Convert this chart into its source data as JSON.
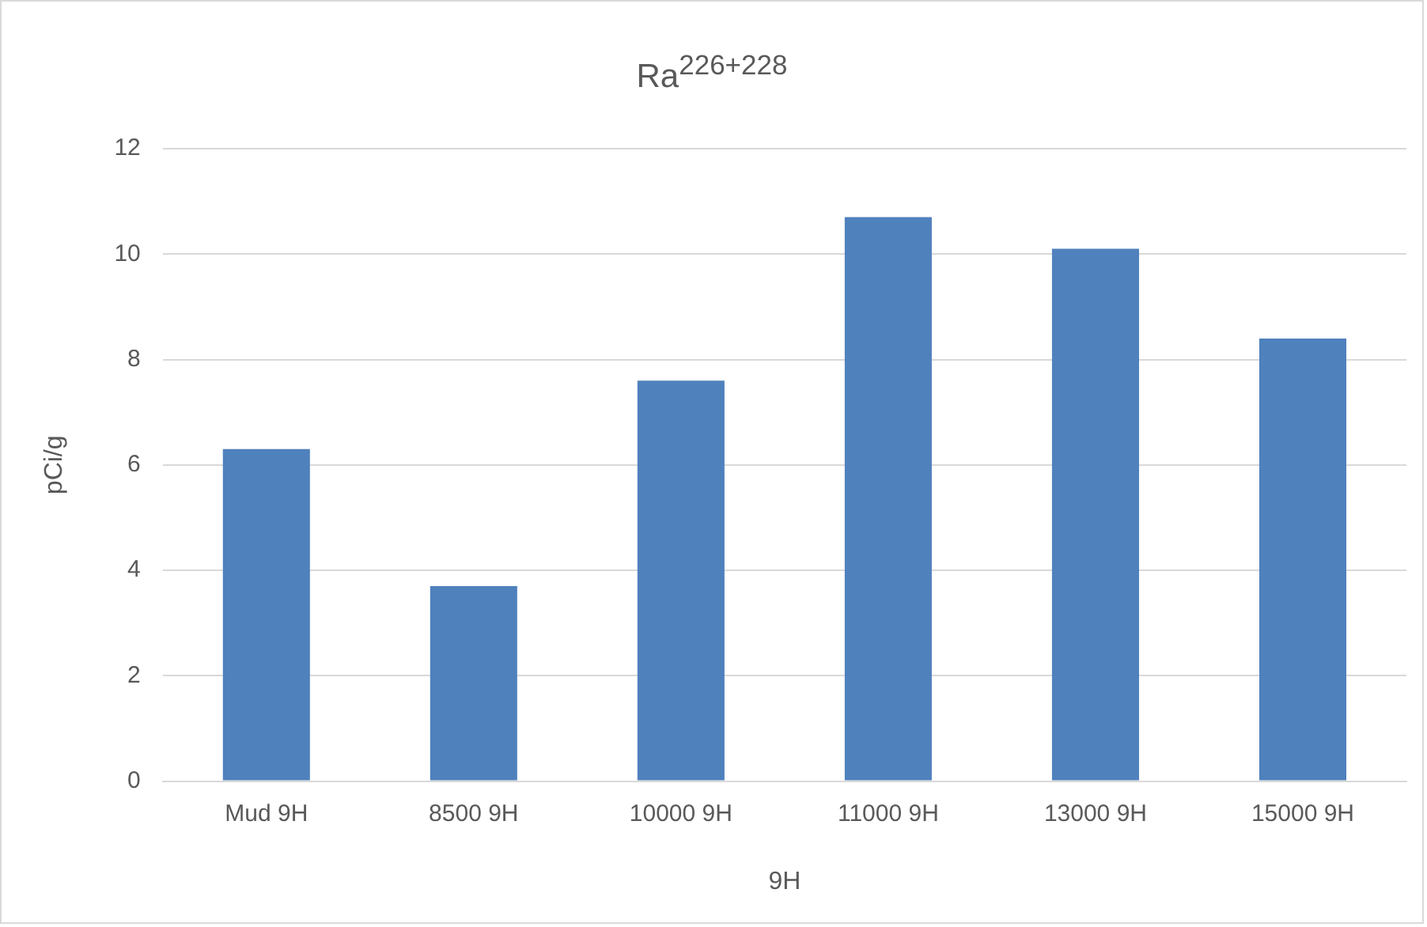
{
  "chart_data": {
    "type": "bar",
    "title": "Ra$^{226+228}$",
    "xlabel": "9H",
    "ylabel": "pCi/g",
    "categories": [
      "Mud 9H",
      "8500 9H",
      "10000 9H",
      "11000 9H",
      "13000 9H",
      "15000 9H"
    ],
    "values": [
      6.3,
      3.7,
      7.6,
      10.7,
      10.1,
      8.4
    ],
    "color": "#4f81bd",
    "ylim": [
      0,
      12
    ],
    "yticks": [
      0,
      2,
      4,
      6,
      8,
      10,
      12
    ],
    "grid": "y",
    "legend": false
  }
}
